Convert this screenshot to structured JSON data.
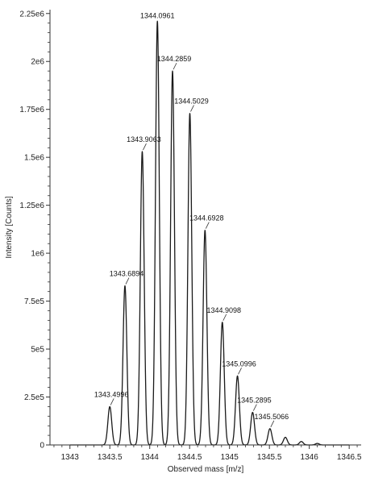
{
  "chart_data": {
    "type": "line",
    "title": "",
    "xlabel": "Observed mass [m/z]",
    "ylabel": "Intensity [Counts]",
    "xlim": [
      1342.75,
      1346.65
    ],
    "ylim": [
      0,
      2270000
    ],
    "x_ticks": [
      {
        "value": 1343,
        "label": "1343"
      },
      {
        "value": 1343.5,
        "label": "1343.5"
      },
      {
        "value": 1344,
        "label": "1344"
      },
      {
        "value": 1344.5,
        "label": "1344.5"
      },
      {
        "value": 1345,
        "label": "1345"
      },
      {
        "value": 1345.5,
        "label": "1345.5"
      },
      {
        "value": 1346,
        "label": "1346"
      },
      {
        "value": 1346.5,
        "label": "1346.5"
      }
    ],
    "y_ticks": [
      {
        "value": 0,
        "label": "0"
      },
      {
        "value": 250000,
        "label": "2.5e5"
      },
      {
        "value": 500000,
        "label": "5e5"
      },
      {
        "value": 750000,
        "label": "7.5e5"
      },
      {
        "value": 1000000,
        "label": "1e6"
      },
      {
        "value": 1250000,
        "label": "1.25e6"
      },
      {
        "value": 1500000,
        "label": "1.5e6"
      },
      {
        "value": 1750000,
        "label": "1.75e6"
      },
      {
        "value": 2000000,
        "label": "2e6"
      },
      {
        "value": 2250000,
        "label": "2.25e6"
      }
    ],
    "grid": false,
    "legend": "none",
    "line_color": "#1a1a1a",
    "peaks": [
      {
        "mz": 1343.4996,
        "intensity": 200000,
        "label": "1343.4996"
      },
      {
        "mz": 1343.6894,
        "intensity": 830000,
        "label": "1343.6894"
      },
      {
        "mz": 1343.9063,
        "intensity": 1530000,
        "label": "1343.9063"
      },
      {
        "mz": 1344.0961,
        "intensity": 2210000,
        "label": "1344.0961"
      },
      {
        "mz": 1344.2859,
        "intensity": 1950000,
        "label": "1344.2859"
      },
      {
        "mz": 1344.5029,
        "intensity": 1730000,
        "label": "1344.5029"
      },
      {
        "mz": 1344.6928,
        "intensity": 1120000,
        "label": "1344.6928"
      },
      {
        "mz": 1344.9098,
        "intensity": 640000,
        "label": "1344.9098"
      },
      {
        "mz": 1345.0996,
        "intensity": 360000,
        "label": "1345.0996"
      },
      {
        "mz": 1345.2895,
        "intensity": 170000,
        "label": "1345.2895"
      },
      {
        "mz": 1345.5066,
        "intensity": 85000,
        "label": "1345.5066"
      },
      {
        "mz": 1345.7,
        "intensity": 40000,
        "label": ""
      },
      {
        "mz": 1345.9,
        "intensity": 18000,
        "label": ""
      },
      {
        "mz": 1346.1,
        "intensity": 8000,
        "label": ""
      }
    ]
  }
}
